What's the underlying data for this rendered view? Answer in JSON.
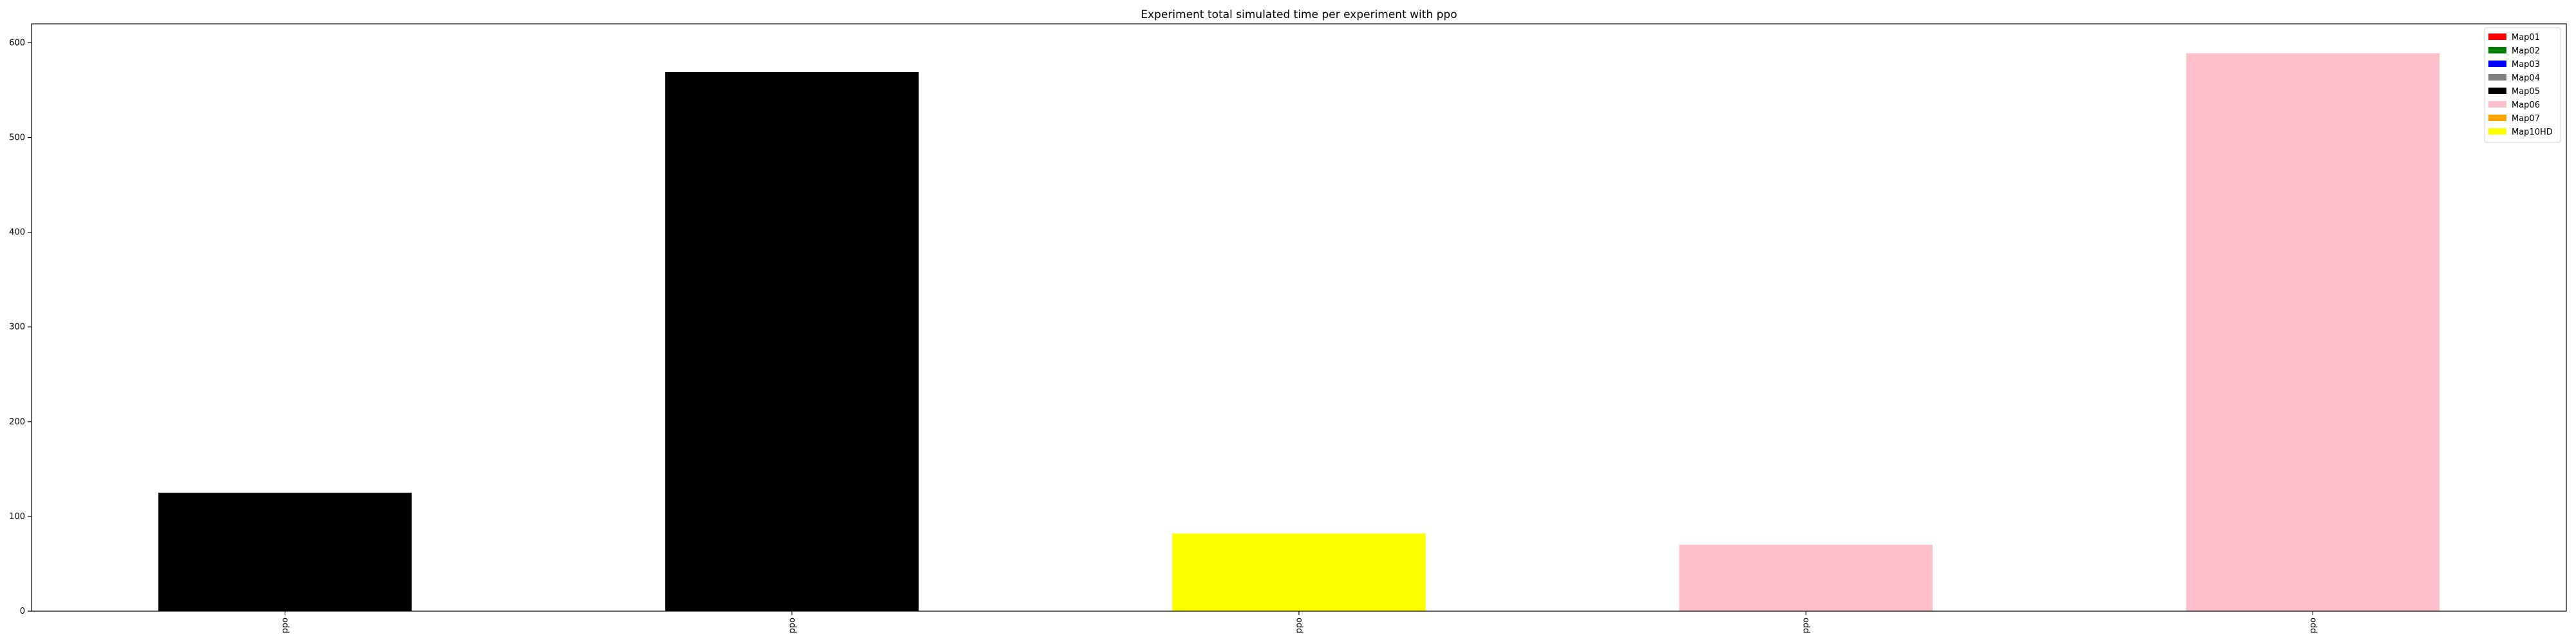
{
  "chart_data": {
    "type": "bar",
    "title": "Experiment total simulated time per experiment with ppo",
    "xlabel": "",
    "ylabel": "",
    "categories": [
      "ppo",
      "ppo",
      "ppo",
      "ppo",
      "ppo"
    ],
    "values": [
      125,
      569,
      82,
      70,
      589
    ],
    "bar_colors": [
      "#000000",
      "#000000",
      "#ffff00",
      "#ffc0cb",
      "#ffc0cb"
    ],
    "ylim": [
      0,
      620
    ],
    "yticks": [
      0,
      100,
      200,
      300,
      400,
      500,
      600
    ],
    "grid": false,
    "legend": {
      "placement": "top-right",
      "entries": [
        {
          "name": "Map01",
          "color": "#ff0000"
        },
        {
          "name": "Map02",
          "color": "#008000"
        },
        {
          "name": "Map03",
          "color": "#0000ff"
        },
        {
          "name": "Map04",
          "color": "#808080"
        },
        {
          "name": "Map05",
          "color": "#000000"
        },
        {
          "name": "Map06",
          "color": "#ffc0cb"
        },
        {
          "name": "Map07",
          "color": "#ffa500"
        },
        {
          "name": "Map10HD",
          "color": "#ffff00"
        }
      ]
    }
  }
}
